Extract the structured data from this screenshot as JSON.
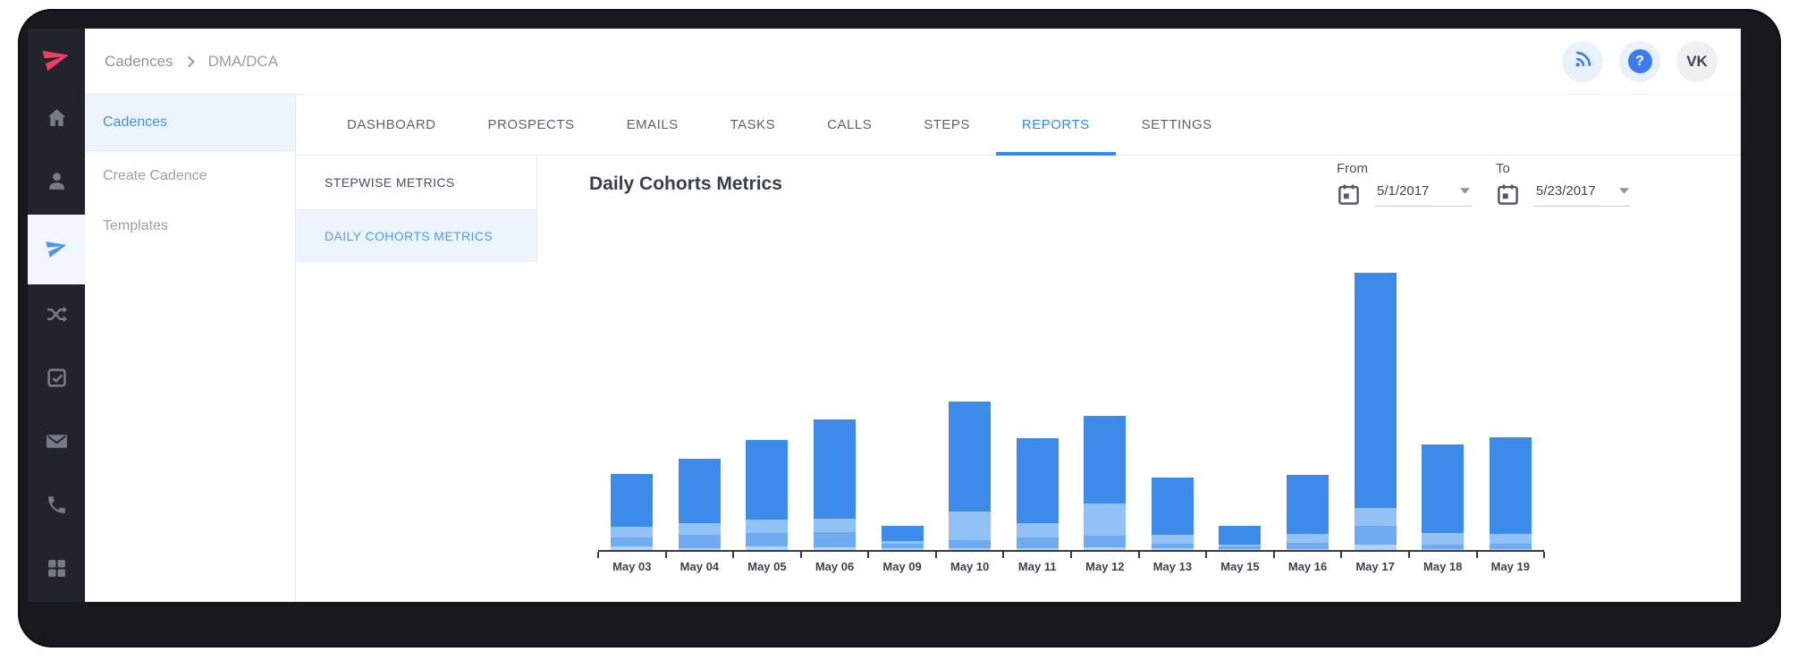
{
  "header": {
    "breadcrumb": [
      {
        "label": "Cadences",
        "current": false
      },
      {
        "label": "DMA/DCA",
        "current": true
      }
    ],
    "actions": [
      {
        "icon": "rss-icon"
      },
      {
        "icon": "help-icon"
      }
    ],
    "avatar": "VK"
  },
  "rail": {
    "logo_icon": "paper-plane-logo-icon",
    "logo_color": "#EE3D61",
    "items": [
      {
        "icon": "home-icon",
        "active": false
      },
      {
        "icon": "user-icon",
        "active": false
      },
      {
        "icon": "paper-plane-icon",
        "active": true
      },
      {
        "icon": "shuffle-icon",
        "active": false
      },
      {
        "icon": "check-square-icon",
        "active": false
      },
      {
        "icon": "envelope-icon",
        "active": false
      },
      {
        "icon": "phone-icon",
        "active": false
      },
      {
        "icon": "grid-icon",
        "active": false
      }
    ]
  },
  "sidebar": {
    "items": [
      {
        "label": "Cadences",
        "active": true
      },
      {
        "label": "Create Cadence",
        "active": false
      },
      {
        "label": "Templates",
        "active": false
      }
    ]
  },
  "tabs": [
    {
      "label": "DASHBOARD",
      "active": false
    },
    {
      "label": "PROSPECTS",
      "active": false
    },
    {
      "label": "EMAILS",
      "active": false
    },
    {
      "label": "TASKS",
      "active": false
    },
    {
      "label": "CALLS",
      "active": false
    },
    {
      "label": "STEPS",
      "active": false
    },
    {
      "label": "REPORTS",
      "active": true
    },
    {
      "label": "SETTINGS",
      "active": false
    }
  ],
  "subnav": [
    {
      "label": "STEPWISE METRICS",
      "active": false
    },
    {
      "label": "DAILY COHORTS METRICS",
      "active": true
    }
  ],
  "report": {
    "title": "Daily Cohorts Metrics",
    "date_from": {
      "label": "From",
      "value": "5/1/2017",
      "icon": "calendar-icon"
    },
    "date_to": {
      "label": "To",
      "value": "5/23/2017",
      "icon": "calendar-icon"
    }
  },
  "colors": {
    "accent_blue": "#2F8BF0",
    "sidebar_active_blue": "#4A90E2",
    "bar_primary": "#3C8BEA",
    "bar_light": "#92C1F5",
    "bar_mid": "#6FABF0",
    "bar_pale": "#B3D2F7",
    "logo_pink": "#EE3D61"
  },
  "chart_data": {
    "type": "bar",
    "stacked": true,
    "title": "Daily Cohorts Metrics",
    "categories": [
      "May 03",
      "May 04",
      "May 05",
      "May 06",
      "May 09",
      "May 10",
      "May 11",
      "May 12",
      "May 13",
      "May 15",
      "May 16",
      "May 17",
      "May 18",
      "May 19"
    ],
    "series": [
      {
        "name": "segment-1-bottom",
        "color": "#B3D2F7",
        "values": [
          4,
          2,
          4,
          3,
          2,
          2,
          2,
          3,
          2,
          1,
          1,
          6,
          1,
          1
        ]
      },
      {
        "name": "segment-2",
        "color": "#6FABF0",
        "values": [
          10,
          15,
          15,
          17,
          5,
          9,
          12,
          13,
          5,
          3,
          7,
          21,
          5,
          6
        ]
      },
      {
        "name": "segment-3",
        "color": "#92C1F5",
        "values": [
          12,
          13,
          15,
          15,
          3,
          32,
          16,
          36,
          10,
          2,
          10,
          20,
          13,
          11
        ]
      },
      {
        "name": "segment-4-top",
        "color": "#3C8BEA",
        "values": [
          59,
          72,
          89,
          111,
          17,
          123,
          95,
          98,
          64,
          21,
          66,
          263,
          99,
          108
        ]
      }
    ],
    "totals": [
      85,
      102,
      123,
      146,
      27,
      166,
      125,
      150,
      81,
      27,
      84,
      310,
      118,
      126
    ],
    "xlabel": "",
    "ylabel": "",
    "y_axis_visible": false,
    "legend": "none",
    "value_scale": "relative units (no y-axis labels shown in chart; values estimated from bar heights)",
    "ylim": [
      0,
      395
    ]
  }
}
